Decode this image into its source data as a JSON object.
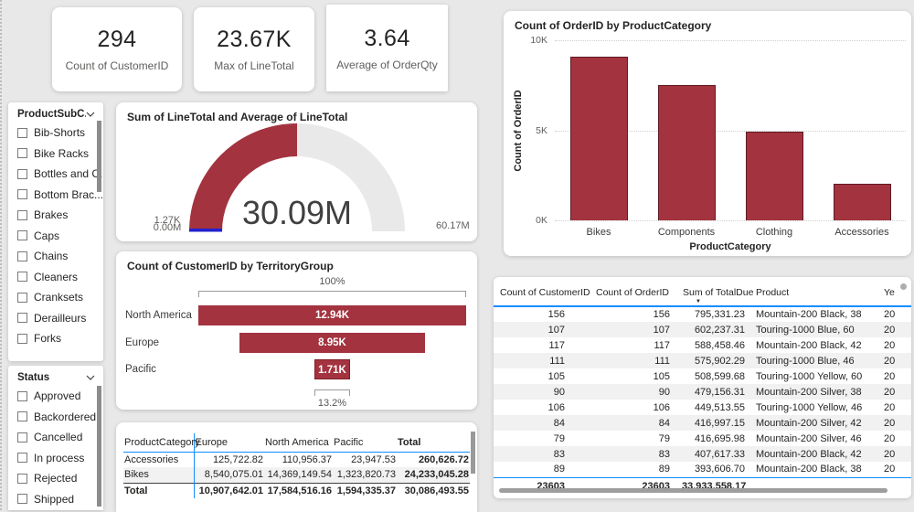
{
  "theme": {
    "red": "#A3333F",
    "blue": "#118DFF",
    "background": "#E8E8E8"
  },
  "cards": [
    {
      "value": "294",
      "label": "Count of CustomerID"
    },
    {
      "value": "23.67K",
      "label": "Max of LineTotal"
    },
    {
      "value": "3.64",
      "label": "Average of OrderQty"
    }
  ],
  "slicers": [
    {
      "title": "ProductSubC...",
      "items": [
        "Bib-Shorts",
        "Bike Racks",
        "Bottles and C...",
        "Bottom Brac...",
        "Brakes",
        "Caps",
        "Chains",
        "Cleaners",
        "Cranksets",
        "Derailleurs",
        "Forks"
      ]
    },
    {
      "title": "Status",
      "items": [
        "Approved",
        "Backordered",
        "Cancelled",
        "In process",
        "Rejected",
        "Shipped"
      ]
    }
  ],
  "chart_data": [
    {
      "id": "orders-by-category",
      "type": "bar",
      "title": "Count of OrderID by ProductCategory",
      "xlabel": "ProductCategory",
      "ylabel": "Count of OrderID",
      "categories": [
        "Bikes",
        "Components",
        "Clothing",
        "Accessories"
      ],
      "values": [
        9100,
        7500,
        4900,
        2050
      ],
      "ylim": [
        0,
        10000
      ],
      "yticks": [
        {
          "label": "10K",
          "value": 10000
        },
        {
          "label": "5K",
          "value": 5000
        },
        {
          "label": "0K",
          "value": 0
        }
      ],
      "grid": "dotted horizontal",
      "legend": "none"
    },
    {
      "id": "linetotal-gauge",
      "type": "gauge",
      "title": "Sum of LineTotal and Average of LineTotal",
      "value_label": "30.09M",
      "min_label": "0.00M",
      "max_label": "60.17M",
      "target_label": "1.27K",
      "fill_fraction": 0.5
    },
    {
      "id": "customers-by-territory",
      "type": "funnel",
      "title": "Count of CustomerID by TerritoryGroup",
      "categories": [
        "North America",
        "Europe",
        "Pacific"
      ],
      "values": [
        12940,
        8950,
        1710
      ],
      "value_labels": [
        "12.94K",
        "8.95K",
        "1.71K"
      ],
      "top_annotation": "100%",
      "bottom_annotation": "13.2%"
    },
    {
      "id": "sales-matrix",
      "type": "table",
      "headers": [
        "ProductCategory",
        "Europe",
        "North America",
        "Pacific",
        "Total"
      ],
      "rows": [
        [
          "Accessories",
          "125,722.82",
          "110,956.37",
          "23,947.53",
          "260,626.72"
        ],
        [
          "Bikes",
          "8,540,075.01",
          "14,369,149.54",
          "1,323,820.73",
          "24,233,045.28"
        ]
      ],
      "total_row": [
        "Total",
        "10,907,642.01",
        "17,584,516.16",
        "1,594,335.37",
        "30,086,493.55"
      ]
    },
    {
      "id": "product-detail-table",
      "type": "table",
      "headers": [
        "Count of CustomerID",
        "Count of OrderID",
        "Sum of TotalDue",
        "Product",
        "Ye"
      ],
      "sort": {
        "column": "Sum of TotalDue",
        "direction": "desc"
      },
      "rows": [
        [
          "156",
          "156",
          "795,331.23",
          "Mountain-200 Black, 38",
          "20"
        ],
        [
          "107",
          "107",
          "602,237.31",
          "Touring-1000 Blue, 60",
          "20"
        ],
        [
          "117",
          "117",
          "588,458.46",
          "Mountain-200 Black, 42",
          "20"
        ],
        [
          "111",
          "111",
          "575,902.29",
          "Touring-1000 Blue, 46",
          "20"
        ],
        [
          "105",
          "105",
          "508,599.68",
          "Touring-1000 Yellow, 60",
          "20"
        ],
        [
          "90",
          "90",
          "479,156.31",
          "Mountain-200 Silver, 38",
          "20"
        ],
        [
          "106",
          "106",
          "449,513.55",
          "Touring-1000 Yellow, 46",
          "20"
        ],
        [
          "84",
          "84",
          "416,997.15",
          "Mountain-200 Silver, 42",
          "20"
        ],
        [
          "79",
          "79",
          "416,695.98",
          "Mountain-200 Silver, 46",
          "20"
        ],
        [
          "83",
          "83",
          "407,617.33",
          "Mountain-200 Black, 42",
          "20"
        ],
        [
          "89",
          "89",
          "393,606.70",
          "Mountain-200 Black, 38",
          "20"
        ]
      ],
      "total_row": [
        "23603",
        "23603",
        "33,933,558.17",
        "",
        ""
      ]
    }
  ]
}
